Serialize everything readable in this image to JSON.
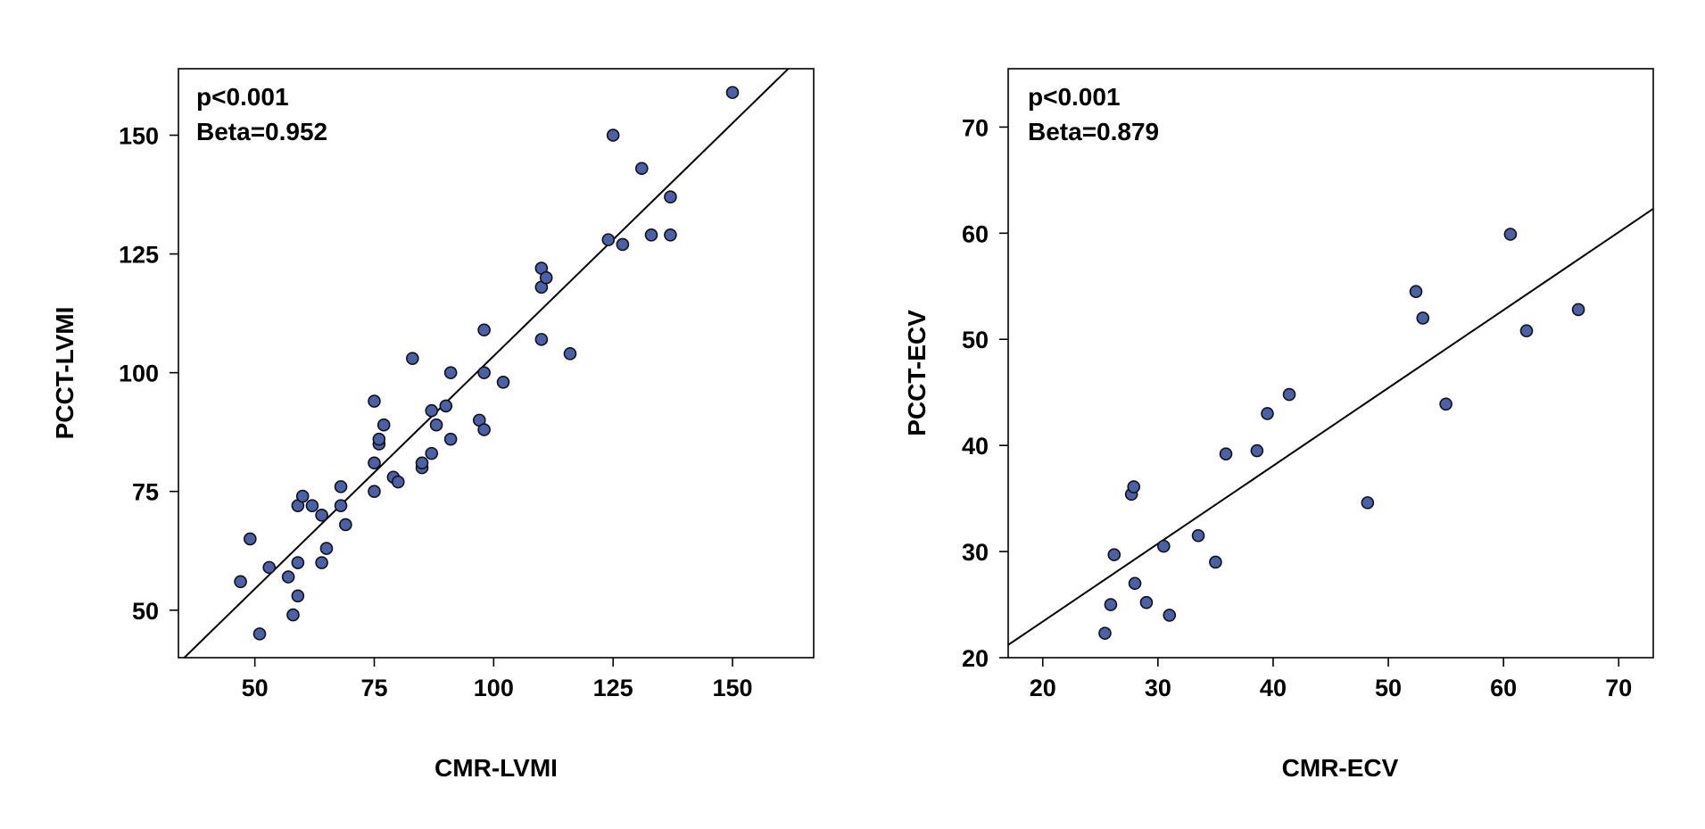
{
  "chart_data": [
    {
      "type": "scatter",
      "title": "",
      "xlabel": "CMR-LVMI",
      "ylabel": "PCCT-LVMI",
      "xlim": [
        34,
        167
      ],
      "ylim": [
        40,
        164
      ],
      "xticks": [
        50,
        75,
        100,
        125,
        150
      ],
      "yticks": [
        50,
        75,
        100,
        125,
        150
      ],
      "annotations": [
        "p<0.001",
        "Beta=0.952"
      ],
      "regression_line": {
        "x": [
          34,
          167
        ],
        "y": [
          38.8,
          169.2
        ]
      },
      "marker_color": "#4a60a8",
      "points": [
        {
          "x": 47,
          "y": 56
        },
        {
          "x": 49,
          "y": 65
        },
        {
          "x": 51,
          "y": 45
        },
        {
          "x": 53,
          "y": 59
        },
        {
          "x": 57,
          "y": 57
        },
        {
          "x": 58,
          "y": 49
        },
        {
          "x": 59,
          "y": 53
        },
        {
          "x": 59,
          "y": 60
        },
        {
          "x": 59,
          "y": 72
        },
        {
          "x": 60,
          "y": 74
        },
        {
          "x": 62,
          "y": 72
        },
        {
          "x": 64,
          "y": 60
        },
        {
          "x": 64,
          "y": 70
        },
        {
          "x": 65,
          "y": 63
        },
        {
          "x": 68,
          "y": 72
        },
        {
          "x": 68,
          "y": 76
        },
        {
          "x": 69,
          "y": 68
        },
        {
          "x": 75,
          "y": 75
        },
        {
          "x": 75,
          "y": 81
        },
        {
          "x": 75,
          "y": 94
        },
        {
          "x": 76,
          "y": 85
        },
        {
          "x": 76,
          "y": 86
        },
        {
          "x": 77,
          "y": 89
        },
        {
          "x": 79,
          "y": 78
        },
        {
          "x": 80,
          "y": 77
        },
        {
          "x": 83,
          "y": 103
        },
        {
          "x": 85,
          "y": 80
        },
        {
          "x": 85,
          "y": 81
        },
        {
          "x": 87,
          "y": 83
        },
        {
          "x": 87,
          "y": 92
        },
        {
          "x": 88,
          "y": 89
        },
        {
          "x": 90,
          "y": 93
        },
        {
          "x": 91,
          "y": 86
        },
        {
          "x": 91,
          "y": 100
        },
        {
          "x": 97,
          "y": 90
        },
        {
          "x": 98,
          "y": 88
        },
        {
          "x": 98,
          "y": 100
        },
        {
          "x": 98,
          "y": 109
        },
        {
          "x": 102,
          "y": 98
        },
        {
          "x": 110,
          "y": 107
        },
        {
          "x": 110,
          "y": 118
        },
        {
          "x": 110,
          "y": 122
        },
        {
          "x": 111,
          "y": 120
        },
        {
          "x": 116,
          "y": 104
        },
        {
          "x": 124,
          "y": 128
        },
        {
          "x": 125,
          "y": 150
        },
        {
          "x": 127,
          "y": 127
        },
        {
          "x": 131,
          "y": 143
        },
        {
          "x": 133,
          "y": 129
        },
        {
          "x": 137,
          "y": 129
        },
        {
          "x": 137,
          "y": 137
        },
        {
          "x": 150,
          "y": 159
        }
      ]
    },
    {
      "type": "scatter",
      "title": "",
      "xlabel": "CMR-ECV",
      "ylabel": "PCCT-ECV",
      "xlim": [
        17,
        73
      ],
      "ylim": [
        20,
        75.5
      ],
      "xticks": [
        20,
        30,
        40,
        50,
        60,
        70
      ],
      "yticks": [
        20,
        30,
        40,
        50,
        60,
        70
      ],
      "annotations": [
        "p<0.001",
        "Beta=0.879"
      ],
      "regression_line": {
        "x": [
          17,
          73
        ],
        "y": [
          21.2,
          62.3
        ]
      },
      "marker_color": "#4a60a8",
      "points": [
        {
          "x": 25.4,
          "y": 22.3
        },
        {
          "x": 25.9,
          "y": 25.0
        },
        {
          "x": 26.2,
          "y": 29.7
        },
        {
          "x": 27.7,
          "y": 35.4
        },
        {
          "x": 27.9,
          "y": 36.1
        },
        {
          "x": 28.0,
          "y": 27.0
        },
        {
          "x": 29.0,
          "y": 25.2
        },
        {
          "x": 30.5,
          "y": 30.5
        },
        {
          "x": 31.0,
          "y": 24.0
        },
        {
          "x": 33.5,
          "y": 31.5
        },
        {
          "x": 35.0,
          "y": 29.0
        },
        {
          "x": 35.9,
          "y": 39.2
        },
        {
          "x": 38.6,
          "y": 39.5
        },
        {
          "x": 39.5,
          "y": 43.0
        },
        {
          "x": 41.4,
          "y": 44.8
        },
        {
          "x": 48.2,
          "y": 34.6
        },
        {
          "x": 52.4,
          "y": 54.5
        },
        {
          "x": 53.0,
          "y": 52.0
        },
        {
          "x": 55.0,
          "y": 43.9
        },
        {
          "x": 60.6,
          "y": 59.9
        },
        {
          "x": 62.0,
          "y": 50.8
        },
        {
          "x": 66.5,
          "y": 52.8
        }
      ]
    }
  ]
}
